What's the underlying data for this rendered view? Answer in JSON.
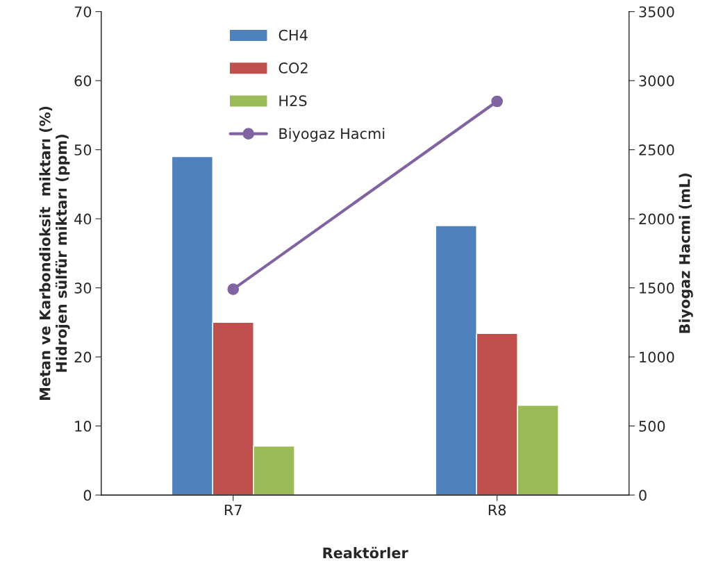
{
  "chart_data": {
    "type": "bar",
    "xlabel": "Reaktörler",
    "ylabel": "Metan ve Karbondioksit  miktarı (%)\nHidrojen sülfür miktarı (ppm)",
    "y2label": "Biyogaz Hacmi (mL)",
    "categories": [
      "R7",
      "R8"
    ],
    "series": [
      {
        "name": "CH4",
        "color": "#4f81bd",
        "values": [
          49,
          39
        ]
      },
      {
        "name": "CO2",
        "color": "#c0504d",
        "values": [
          25,
          23.4
        ]
      },
      {
        "name": "H2S",
        "color": "#9bbb59",
        "values": [
          7.1,
          13
        ]
      },
      {
        "name": "Biyogaz Hacmi",
        "type": "line",
        "axis": "y2",
        "color": "#8064a2",
        "marker": "circle",
        "values": [
          1490,
          2850
        ]
      }
    ],
    "ylim": [
      0,
      70
    ],
    "yticks": [
      0,
      10,
      20,
      30,
      40,
      50,
      60,
      70
    ],
    "y2lim": [
      0,
      3500
    ],
    "y2ticks": [
      0,
      500,
      1000,
      1500,
      2000,
      2500,
      3000,
      3500
    ],
    "grid": false,
    "legend": "top left"
  }
}
